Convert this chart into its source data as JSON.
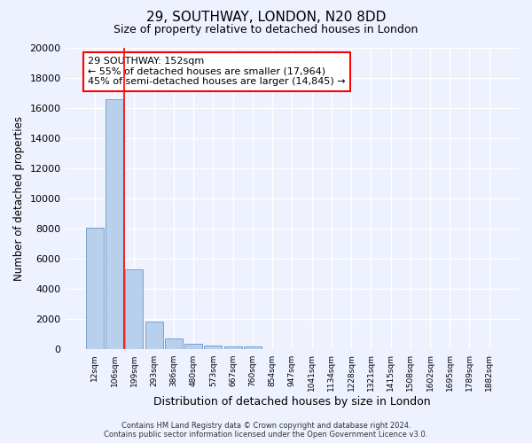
{
  "title1": "29, SOUTHWAY, LONDON, N20 8DD",
  "title2": "Size of property relative to detached houses in London",
  "xlabel": "Distribution of detached houses by size in London",
  "ylabel": "Number of detached properties",
  "annotation_line1": "29 SOUTHWAY: 152sqm",
  "annotation_line2": "← 55% of detached houses are smaller (17,964)",
  "annotation_line3": "45% of semi-detached houses are larger (14,845) →",
  "footer1": "Contains HM Land Registry data © Crown copyright and database right 2024.",
  "footer2": "Contains public sector information licensed under the Open Government Licence v3.0.",
  "categories": [
    "12sqm",
    "106sqm",
    "199sqm",
    "293sqm",
    "386sqm",
    "480sqm",
    "573sqm",
    "667sqm",
    "760sqm",
    "854sqm",
    "947sqm",
    "1041sqm",
    "1134sqm",
    "1228sqm",
    "1321sqm",
    "1415sqm",
    "1508sqm",
    "1602sqm",
    "1695sqm",
    "1789sqm",
    "1882sqm"
  ],
  "values": [
    8100,
    16600,
    5300,
    1850,
    750,
    380,
    280,
    220,
    200,
    0,
    0,
    0,
    0,
    0,
    0,
    0,
    0,
    0,
    0,
    0,
    0
  ],
  "bar_color": "#b8d0ec",
  "bar_edge_color": "#6699cc",
  "vline_x": 1.5,
  "vline_color": "red",
  "ylim": [
    0,
    20000
  ],
  "yticks": [
    0,
    2000,
    4000,
    6000,
    8000,
    10000,
    12000,
    14000,
    16000,
    18000,
    20000
  ],
  "bg_color": "#eef2ff",
  "grid_color": "#ffffff",
  "annotation_box_color": "#ffffff",
  "annotation_box_edge": "red"
}
